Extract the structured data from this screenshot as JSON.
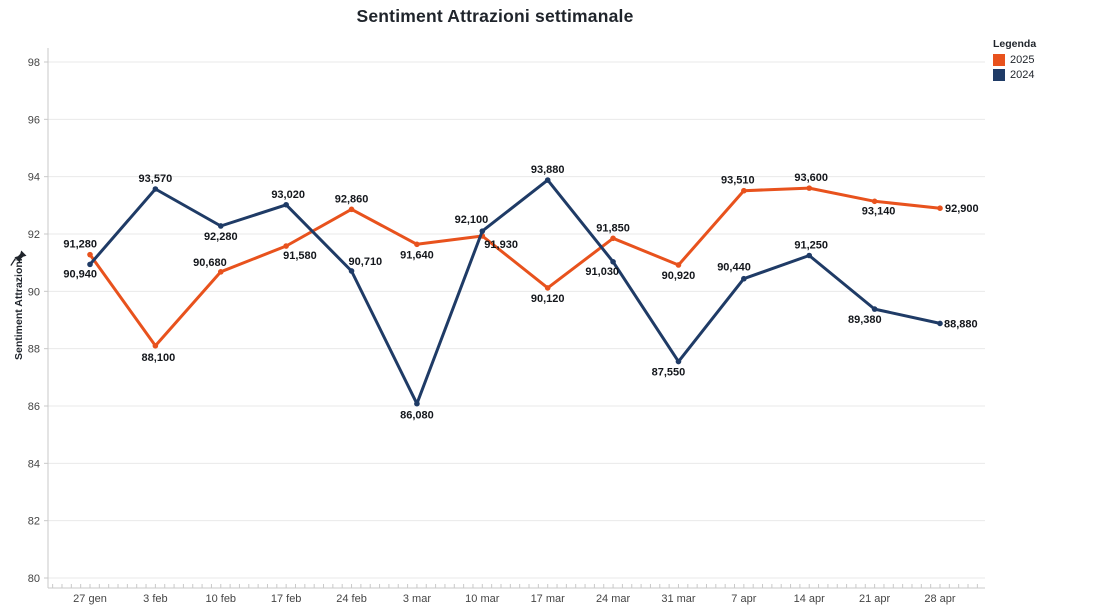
{
  "legend": {
    "title": "Legenda"
  },
  "icons": {
    "ylabel_icon": "pushpin-icon"
  },
  "chart_data": {
    "type": "line",
    "title": "Sentiment Attrazioni settimanale",
    "xlabel": "",
    "ylabel": "Sentiment Attrazioni",
    "ylim": [
      80,
      98
    ],
    "ytick_step": 2,
    "grid": "horizontal",
    "legend_position": "top-right",
    "categories": [
      "27 gen",
      "3 feb",
      "10 feb",
      "17 feb",
      "24 feb",
      "3 mar",
      "10 mar",
      "17 mar",
      "24 mar",
      "31 mar",
      "7 apr",
      "14 apr",
      "21 apr",
      "28 apr"
    ],
    "series": [
      {
        "name": "2025",
        "color": "#e8521d",
        "values": [
          91.28,
          88.1,
          90.68,
          91.58,
          92.86,
          91.64,
          91.93,
          90.12,
          91.85,
          90.92,
          93.51,
          93.6,
          93.14,
          92.9
        ],
        "labels": [
          "91,280",
          "88,100",
          "90,680",
          "91,580",
          "92,860",
          "91,640",
          "91,930",
          "90,120",
          "91,850",
          "90,920",
          "93,510",
          "93,600",
          "93,140",
          "92,900"
        ],
        "label_offsets": [
          [
            7,
            -7,
            "end"
          ],
          [
            3,
            15,
            "middle"
          ],
          [
            6,
            -6,
            "end"
          ],
          [
            -3,
            13,
            "start"
          ],
          [
            0,
            -7,
            "middle"
          ],
          [
            0,
            14,
            "middle"
          ],
          [
            2,
            12,
            "start"
          ],
          [
            0,
            14,
            "middle"
          ],
          [
            0,
            -7,
            "middle"
          ],
          [
            0,
            14,
            "middle"
          ],
          [
            -6,
            -7,
            "middle"
          ],
          [
            2,
            -7,
            "middle"
          ],
          [
            4,
            13,
            "middle"
          ],
          [
            5,
            4,
            "start"
          ]
        ]
      },
      {
        "name": "2024",
        "color": "#1f3b66",
        "values": [
          90.94,
          93.57,
          92.28,
          93.02,
          90.71,
          86.08,
          92.1,
          93.88,
          91.03,
          87.55,
          90.44,
          91.25,
          89.38,
          88.88
        ],
        "labels": [
          "90,940",
          "93,570",
          "92,280",
          "93,020",
          "90,710",
          "86,080",
          "92,100",
          "93,880",
          "91,030",
          "87,550",
          "90,440",
          "91,250",
          "89,380",
          "88,880"
        ],
        "label_offsets": [
          [
            7,
            13,
            "end"
          ],
          [
            0,
            -7,
            "middle"
          ],
          [
            0,
            14,
            "middle"
          ],
          [
            2,
            -7,
            "middle"
          ],
          [
            -3,
            -6,
            "start"
          ],
          [
            0,
            15,
            "middle"
          ],
          [
            6,
            -8,
            "end"
          ],
          [
            0,
            -7,
            "middle"
          ],
          [
            6,
            13,
            "end"
          ],
          [
            -10,
            14,
            "middle"
          ],
          [
            7,
            -8,
            "end"
          ],
          [
            2,
            -7,
            "middle"
          ],
          [
            7,
            14,
            "end"
          ],
          [
            4,
            4,
            "start"
          ]
        ]
      }
    ]
  }
}
